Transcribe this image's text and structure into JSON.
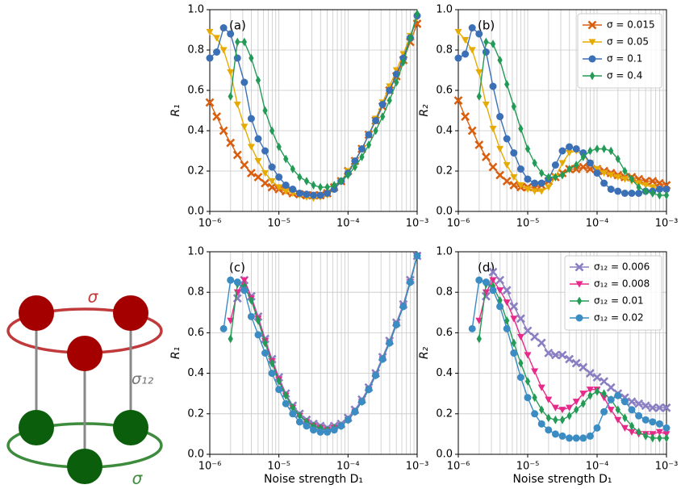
{
  "diagram": {
    "labels": [
      "σ",
      "σ₁₂",
      "σ"
    ]
  },
  "chart_data": [
    {
      "type": "line",
      "panel": "(a)",
      "ylabel": "R₁",
      "xscale": "log",
      "grid": true,
      "x": [
        1e-06,
        1.259e-06,
        1.585e-06,
        1.995e-06,
        2.512e-06,
        3.162e-06,
        3.981e-06,
        5.012e-06,
        6.31e-06,
        7.943e-06,
        1e-05,
        1.259e-05,
        1.585e-05,
        1.995e-05,
        2.512e-05,
        3.162e-05,
        3.981e-05,
        5.012e-05,
        6.31e-05,
        7.943e-05,
        0.0001,
        0.0001259,
        0.0001585,
        0.0001995,
        0.0002512,
        0.0003162,
        0.0003981,
        0.0005012,
        0.000631,
        0.0007943,
        0.001
      ],
      "xlim": [
        1e-06,
        0.001
      ],
      "xticks": [
        {
          "value": 1e-06,
          "label": "10⁻⁶"
        },
        {
          "value": 1e-05,
          "label": "10⁻⁵"
        },
        {
          "value": 0.0001,
          "label": "10⁻⁴"
        },
        {
          "value": 0.001,
          "label": "10⁻³"
        }
      ],
      "ylim": [
        0,
        1
      ],
      "yticks": [
        {
          "value": 0,
          "label": "0.0"
        },
        0.2,
        0.4,
        0.6,
        0.8,
        {
          "value": 1,
          "label": "1.0"
        }
      ],
      "series": [
        {
          "name": "σ = 0.015",
          "color": "#d95f0e",
          "marker": "x",
          "values": [
            0.54,
            0.47,
            0.4,
            0.34,
            0.28,
            0.23,
            0.19,
            0.17,
            0.14,
            0.12,
            0.11,
            0.1,
            0.09,
            0.085,
            0.08,
            0.08,
            0.08,
            0.09,
            0.12,
            0.15,
            0.2,
            0.25,
            0.31,
            0.38,
            0.45,
            0.52,
            0.6,
            0.67,
            0.75,
            0.84,
            0.93
          ]
        },
        {
          "name": "σ = 0.05",
          "color": "#e6ab02",
          "marker": "tri",
          "values": [
            0.89,
            0.86,
            0.8,
            0.69,
            0.53,
            0.42,
            0.32,
            0.25,
            0.19,
            0.15,
            0.12,
            0.1,
            0.09,
            0.08,
            0.07,
            0.065,
            0.07,
            0.08,
            0.11,
            0.15,
            0.2,
            0.25,
            0.31,
            0.38,
            0.46,
            0.54,
            0.62,
            0.7,
            0.78,
            0.87,
            0.96
          ]
        },
        {
          "name": "σ = 0.1",
          "color": "#3b6fb6",
          "marker": "circle",
          "values": [
            0.76,
            0.79,
            0.91,
            0.88,
            0.76,
            0.64,
            0.46,
            0.36,
            0.3,
            0.22,
            0.17,
            0.13,
            0.11,
            0.09,
            0.085,
            0.08,
            0.08,
            0.09,
            0.11,
            0.15,
            0.19,
            0.25,
            0.31,
            0.38,
            0.45,
            0.53,
            0.6,
            0.68,
            0.76,
            0.86,
            0.97
          ]
        },
        {
          "name": "σ = 0.4",
          "color": "#239b56",
          "marker": "diamond",
          "values": [
            null,
            null,
            null,
            0.57,
            0.84,
            0.84,
            0.76,
            0.65,
            0.5,
            0.4,
            0.32,
            0.26,
            0.21,
            0.17,
            0.15,
            0.13,
            0.12,
            0.12,
            0.13,
            0.15,
            0.18,
            0.22,
            0.27,
            0.33,
            0.4,
            0.47,
            0.55,
            0.64,
            0.74,
            0.86,
            0.98
          ]
        }
      ]
    },
    {
      "type": "line",
      "panel": "(b)",
      "ylabel": "R₂",
      "xscale": "log",
      "grid": true,
      "legend": "upper right",
      "x": [
        1e-06,
        1.259e-06,
        1.585e-06,
        1.995e-06,
        2.512e-06,
        3.162e-06,
        3.981e-06,
        5.012e-06,
        6.31e-06,
        7.943e-06,
        1e-05,
        1.259e-05,
        1.585e-05,
        1.995e-05,
        2.512e-05,
        3.162e-05,
        3.981e-05,
        5.012e-05,
        6.31e-05,
        7.943e-05,
        0.0001,
        0.0001259,
        0.0001585,
        0.0001995,
        0.0002512,
        0.0003162,
        0.0003981,
        0.0005012,
        0.000631,
        0.0007943,
        0.001
      ],
      "xlim": [
        1e-06,
        0.001
      ],
      "xticks": [
        {
          "value": 1e-06,
          "label": "10⁻⁶"
        },
        {
          "value": 1e-05,
          "label": "10⁻⁵"
        },
        {
          "value": 0.0001,
          "label": "10⁻⁴"
        },
        {
          "value": 0.001,
          "label": "10⁻³"
        }
      ],
      "ylim": [
        0,
        1
      ],
      "yticks": [
        {
          "value": 0,
          "label": "0.0"
        },
        0.2,
        0.4,
        0.6,
        0.8,
        {
          "value": 1,
          "label": "1.0"
        }
      ],
      "series": [
        {
          "name": "σ = 0.015",
          "color": "#d95f0e",
          "marker": "x",
          "values": [
            0.55,
            0.47,
            0.4,
            0.33,
            0.27,
            0.22,
            0.18,
            0.15,
            0.13,
            0.12,
            0.12,
            0.12,
            0.13,
            0.15,
            0.17,
            0.19,
            0.21,
            0.21,
            0.22,
            0.21,
            0.21,
            0.2,
            0.19,
            0.18,
            0.17,
            0.17,
            0.16,
            0.15,
            0.15,
            0.14,
            0.13
          ]
        },
        {
          "name": "σ = 0.05",
          "color": "#e6ab02",
          "marker": "tri",
          "values": [
            0.89,
            0.85,
            0.8,
            0.69,
            0.53,
            0.41,
            0.31,
            0.23,
            0.17,
            0.13,
            0.11,
            0.1,
            0.1,
            0.12,
            0.17,
            0.24,
            0.29,
            0.3,
            0.28,
            0.24,
            0.21,
            0.19,
            0.18,
            0.17,
            0.16,
            0.15,
            0.14,
            0.13,
            0.12,
            0.11,
            0.1
          ]
        },
        {
          "name": "σ = 0.1",
          "color": "#3b6fb6",
          "marker": "circle",
          "values": [
            0.76,
            0.78,
            0.91,
            0.88,
            0.79,
            0.62,
            0.47,
            0.36,
            0.29,
            0.21,
            0.16,
            0.14,
            0.14,
            0.16,
            0.23,
            0.3,
            0.32,
            0.31,
            0.29,
            0.24,
            0.19,
            0.14,
            0.11,
            0.1,
            0.09,
            0.09,
            0.09,
            0.1,
            0.1,
            0.11,
            0.11
          ]
        },
        {
          "name": "σ = 0.4",
          "color": "#239b56",
          "marker": "diamond",
          "values": [
            null,
            null,
            null,
            0.57,
            0.84,
            0.83,
            0.75,
            0.63,
            0.52,
            0.41,
            0.31,
            0.24,
            0.19,
            0.17,
            0.17,
            0.18,
            0.21,
            0.23,
            0.27,
            0.3,
            0.31,
            0.31,
            0.3,
            0.26,
            0.2,
            0.16,
            0.12,
            0.1,
            0.09,
            0.08,
            0.08
          ]
        }
      ]
    },
    {
      "type": "line",
      "panel": "(c)",
      "ylabel": "R₁",
      "xlabel": "Noise strength D₁",
      "xscale": "log",
      "grid": true,
      "x": [
        1e-06,
        1.259e-06,
        1.585e-06,
        1.995e-06,
        2.512e-06,
        3.162e-06,
        3.981e-06,
        5.012e-06,
        6.31e-06,
        7.943e-06,
        1e-05,
        1.259e-05,
        1.585e-05,
        1.995e-05,
        2.512e-05,
        3.162e-05,
        3.981e-05,
        5.012e-05,
        6.31e-05,
        7.943e-05,
        0.0001,
        0.0001259,
        0.0001585,
        0.0001995,
        0.0002512,
        0.0003162,
        0.0003981,
        0.0005012,
        0.000631,
        0.0007943,
        0.001
      ],
      "xlim": [
        1e-06,
        0.001
      ],
      "xticks": [
        {
          "value": 1e-06,
          "label": "10⁻⁶"
        },
        {
          "value": 1e-05,
          "label": "10⁻⁵"
        },
        {
          "value": 0.0001,
          "label": "10⁻⁴"
        },
        {
          "value": 0.001,
          "label": "10⁻³"
        }
      ],
      "ylim": [
        0,
        1
      ],
      "yticks": [
        {
          "value": 0,
          "label": "0.0"
        },
        0.2,
        0.4,
        0.6,
        0.8,
        {
          "value": 1,
          "label": "1.0"
        }
      ],
      "series": [
        {
          "name": "σ₁₂ = 0.006",
          "color": "#8a7fc2",
          "marker": "x",
          "values": [
            null,
            null,
            null,
            null,
            0.77,
            0.86,
            0.78,
            0.68,
            0.57,
            0.47,
            0.38,
            0.3,
            0.24,
            0.2,
            0.17,
            0.15,
            0.14,
            0.13,
            0.14,
            0.15,
            0.18,
            0.22,
            0.27,
            0.33,
            0.4,
            0.48,
            0.56,
            0.65,
            0.74,
            0.86,
            0.98
          ]
        },
        {
          "name": "σ₁₂ = 0.008",
          "color": "#e7298a",
          "marker": "tri",
          "values": [
            null,
            null,
            null,
            0.66,
            0.8,
            0.86,
            0.77,
            0.67,
            0.56,
            0.46,
            0.37,
            0.29,
            0.23,
            0.19,
            0.16,
            0.14,
            0.13,
            0.12,
            0.13,
            0.14,
            0.17,
            0.21,
            0.26,
            0.32,
            0.39,
            0.47,
            0.55,
            0.64,
            0.73,
            0.85,
            0.98
          ]
        },
        {
          "name": "σ₁₂ = 0.01",
          "color": "#239b56",
          "marker": "diamond",
          "values": [
            null,
            null,
            null,
            0.57,
            0.84,
            0.83,
            0.76,
            0.66,
            0.55,
            0.45,
            0.36,
            0.29,
            0.23,
            0.19,
            0.16,
            0.14,
            0.13,
            0.12,
            0.13,
            0.14,
            0.17,
            0.21,
            0.26,
            0.32,
            0.39,
            0.47,
            0.55,
            0.64,
            0.73,
            0.85,
            0.98
          ]
        },
        {
          "name": "σ₁₂ = 0.02",
          "color": "#3a8cc2",
          "marker": "circle",
          "values": [
            null,
            null,
            0.62,
            0.86,
            0.85,
            0.81,
            0.68,
            0.59,
            0.5,
            0.4,
            0.32,
            0.25,
            0.2,
            0.16,
            0.14,
            0.12,
            0.11,
            0.11,
            0.12,
            0.14,
            0.17,
            0.21,
            0.26,
            0.32,
            0.39,
            0.47,
            0.55,
            0.64,
            0.73,
            0.85,
            0.98
          ]
        }
      ]
    },
    {
      "type": "line",
      "panel": "(d)",
      "ylabel": "R₂",
      "xlabel": "Noise strength D₁",
      "xscale": "log",
      "grid": true,
      "legend": "upper right",
      "x": [
        1e-06,
        1.259e-06,
        1.585e-06,
        1.995e-06,
        2.512e-06,
        3.162e-06,
        3.981e-06,
        5.012e-06,
        6.31e-06,
        7.943e-06,
        1e-05,
        1.259e-05,
        1.585e-05,
        1.995e-05,
        2.512e-05,
        3.162e-05,
        3.981e-05,
        5.012e-05,
        6.31e-05,
        7.943e-05,
        0.0001,
        0.0001259,
        0.0001585,
        0.0001995,
        0.0002512,
        0.0003162,
        0.0003981,
        0.0005012,
        0.000631,
        0.0007943,
        0.001
      ],
      "xlim": [
        1e-06,
        0.001
      ],
      "xticks": [
        {
          "value": 1e-06,
          "label": "10⁻⁶"
        },
        {
          "value": 1e-05,
          "label": "10⁻⁵"
        },
        {
          "value": 0.0001,
          "label": "10⁻⁴"
        },
        {
          "value": 0.001,
          "label": "10⁻³"
        }
      ],
      "ylim": [
        0,
        1
      ],
      "yticks": [
        {
          "value": 0,
          "label": "0.0"
        },
        0.2,
        0.4,
        0.6,
        0.8,
        {
          "value": 1,
          "label": "1.0"
        }
      ],
      "series": [
        {
          "name": "σ₁₂ = 0.006",
          "color": "#8a7fc2",
          "marker": "x",
          "values": [
            null,
            null,
            null,
            null,
            0.78,
            0.9,
            0.86,
            0.81,
            0.73,
            0.67,
            0.61,
            0.58,
            0.55,
            0.5,
            0.49,
            0.49,
            0.47,
            0.45,
            0.43,
            0.4,
            0.38,
            0.36,
            0.33,
            0.3,
            0.28,
            0.26,
            0.25,
            0.24,
            0.23,
            0.23,
            0.23
          ]
        },
        {
          "name": "σ₁₂ = 0.008",
          "color": "#e7298a",
          "marker": "tri",
          "values": [
            null,
            null,
            null,
            0.66,
            0.8,
            0.86,
            0.81,
            0.75,
            0.67,
            0.58,
            0.49,
            0.41,
            0.33,
            0.27,
            0.23,
            0.22,
            0.23,
            0.26,
            0.3,
            0.32,
            0.32,
            0.28,
            0.22,
            0.17,
            0.13,
            0.11,
            0.1,
            0.1,
            0.1,
            0.11,
            0.1
          ]
        },
        {
          "name": "σ₁₂ = 0.01",
          "color": "#239b56",
          "marker": "diamond",
          "values": [
            null,
            null,
            null,
            0.57,
            0.84,
            0.83,
            0.76,
            0.66,
            0.55,
            0.45,
            0.36,
            0.28,
            0.22,
            0.18,
            0.17,
            0.17,
            0.19,
            0.22,
            0.25,
            0.29,
            0.31,
            0.3,
            0.27,
            0.22,
            0.18,
            0.14,
            0.11,
            0.09,
            0.08,
            0.08,
            0.08
          ]
        },
        {
          "name": "σ₁₂ = 0.02",
          "color": "#3a8cc2",
          "marker": "circle",
          "values": [
            null,
            null,
            0.62,
            0.86,
            0.85,
            0.81,
            0.73,
            0.62,
            0.5,
            0.38,
            0.28,
            0.2,
            0.15,
            0.12,
            0.1,
            0.09,
            0.08,
            0.08,
            0.08,
            0.09,
            0.13,
            0.21,
            0.27,
            0.29,
            0.26,
            0.22,
            0.19,
            0.17,
            0.16,
            0.15,
            0.13
          ]
        }
      ]
    }
  ]
}
